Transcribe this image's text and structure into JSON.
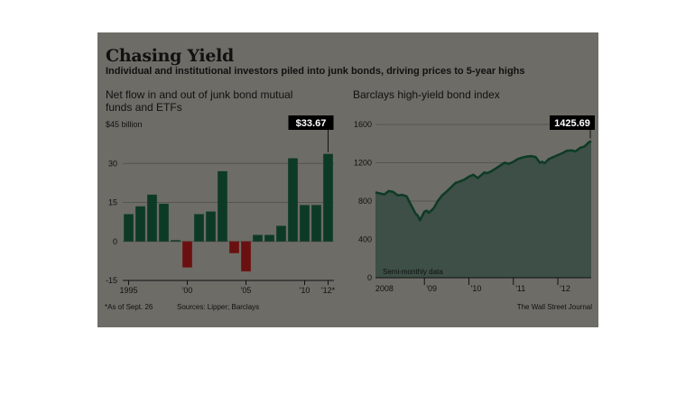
{
  "title": "Chasing Yield",
  "subtitle": "Individual and institutional investors piled into junk bonds, driving prices to 5-year highs",
  "footnote": "*As of Sept. 26",
  "sources": "Sources: Lipper; Barclays",
  "credit": "The Wall Street Journal",
  "colors": {
    "background": "#6d6c66",
    "bar_positive": "#0d3a26",
    "bar_negative": "#6b1010",
    "line": "#0d3a26",
    "area": "#3d4f46",
    "callout": "#000000"
  },
  "chart_data": [
    {
      "type": "bar",
      "title": "Net flow in and out of junk bond mutual funds and ETFs",
      "unit_label": "$45 billion",
      "categories": [
        1995,
        1996,
        1997,
        1998,
        1999,
        2000,
        2001,
        2002,
        2003,
        2004,
        2005,
        2006,
        2007,
        2008,
        2009,
        2010,
        2011,
        2012
      ],
      "values": [
        10.5,
        13.5,
        18,
        14.5,
        0.5,
        -10,
        10.5,
        11.5,
        27,
        -4.5,
        -11.5,
        2.5,
        2.5,
        6,
        32,
        14,
        14,
        33.67
      ],
      "ylim": [
        -15,
        45
      ],
      "yticks": [
        "30",
        "15",
        "0",
        "-15"
      ],
      "ytick_values": [
        30,
        15,
        0,
        -15
      ],
      "xtick_labels": [
        "1995",
        "'00",
        "'05",
        "'10",
        "'12*"
      ],
      "xtick_years": [
        1995,
        2000,
        2005,
        2010,
        2012
      ],
      "callout": {
        "label": "$33.67",
        "category": 2012
      },
      "grid": true
    },
    {
      "type": "area",
      "title": "Barclays high-yield bond index",
      "yticks": [
        "1600",
        "1200",
        "800",
        "400",
        "0"
      ],
      "ytick_values": [
        1600,
        1200,
        800,
        400,
        0
      ],
      "ylim": [
        0,
        1600
      ],
      "xlim": [
        2007.9,
        2012.75
      ],
      "xtick_labels": [
        "2008",
        "'09",
        "'10",
        "'11",
        "'12"
      ],
      "xtick_positions": [
        2008,
        2009,
        2010,
        2011,
        2012
      ],
      "annotation": "Semi-monthly data",
      "callout": {
        "label": "1425.69",
        "value": 1425.69
      },
      "x": [
        2007.9,
        2008.0,
        2008.1,
        2008.2,
        2008.3,
        2008.4,
        2008.5,
        2008.6,
        2008.7,
        2008.8,
        2008.85,
        2008.9,
        2009.0,
        2009.05,
        2009.1,
        2009.2,
        2009.3,
        2009.4,
        2009.5,
        2009.6,
        2009.7,
        2009.8,
        2009.9,
        2010.0,
        2010.1,
        2010.2,
        2010.3,
        2010.35,
        2010.4,
        2010.5,
        2010.6,
        2010.7,
        2010.8,
        2010.9,
        2011.0,
        2011.1,
        2011.2,
        2011.3,
        2011.4,
        2011.5,
        2011.6,
        2011.65,
        2011.7,
        2011.8,
        2011.9,
        2012.0,
        2012.1,
        2012.2,
        2012.3,
        2012.4,
        2012.5,
        2012.6,
        2012.7,
        2012.75
      ],
      "values": [
        890,
        880,
        870,
        905,
        895,
        860,
        865,
        850,
        760,
        670,
        650,
        600,
        690,
        700,
        680,
        720,
        800,
        860,
        900,
        945,
        990,
        1005,
        1025,
        1055,
        1075,
        1040,
        1080,
        1100,
        1090,
        1110,
        1140,
        1170,
        1200,
        1190,
        1210,
        1240,
        1255,
        1265,
        1270,
        1260,
        1200,
        1210,
        1195,
        1240,
        1260,
        1280,
        1300,
        1325,
        1330,
        1320,
        1355,
        1370,
        1415,
        1425.69
      ]
    }
  ]
}
